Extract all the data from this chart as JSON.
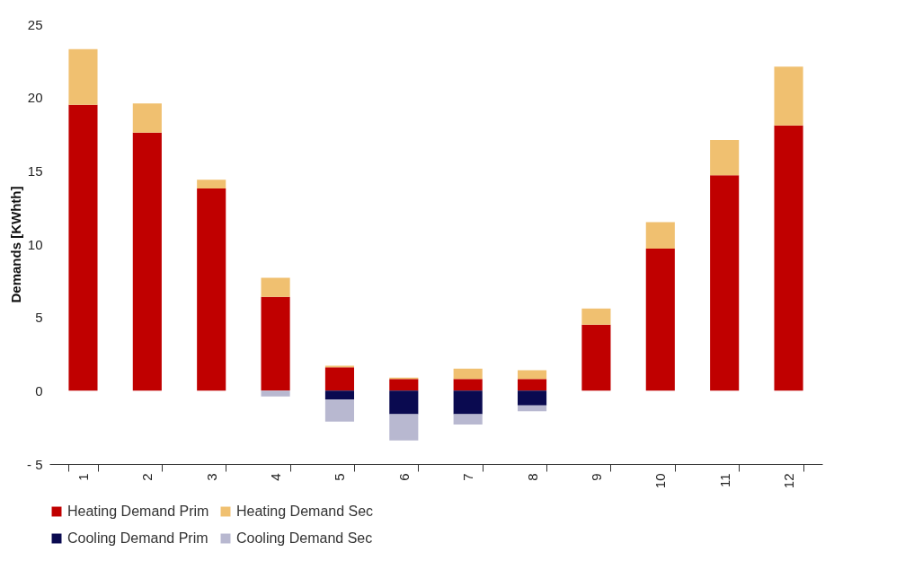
{
  "chart_data": {
    "type": "bar",
    "stacked": true,
    "ylabel": "Demands [KWhth]",
    "categories": [
      "1",
      "2",
      "3",
      "4",
      "5",
      "6",
      "7",
      "8",
      "9",
      "10",
      "11",
      "12"
    ],
    "series": [
      {
        "name": "Heating Demand Prim",
        "color": "#c00000",
        "values": [
          19.5,
          17.6,
          13.8,
          6.4,
          1.6,
          0.8,
          0.8,
          0.8,
          4.5,
          9.7,
          14.7,
          18.1
        ]
      },
      {
        "name": "Heating Demand Sec",
        "color": "#f0c070",
        "values": [
          3.8,
          2.0,
          0.6,
          1.3,
          0.1,
          0.1,
          0.7,
          0.6,
          1.1,
          1.8,
          2.4,
          4.0
        ]
      },
      {
        "name": "Cooling Demand Prim",
        "color": "#0a0a50",
        "values": [
          0,
          0,
          0,
          0,
          -0.6,
          -1.6,
          -1.6,
          -1.0,
          0,
          0,
          0,
          0
        ]
      },
      {
        "name": "Cooling Demand Sec",
        "color": "#b8b8d0",
        "values": [
          0,
          0,
          0,
          -0.4,
          -1.5,
          -1.8,
          -0.7,
          -0.4,
          0,
          0,
          0,
          0
        ]
      }
    ],
    "ylim": [
      -5,
      25
    ],
    "yticks": [
      {
        "value": -5,
        "label": "- 5"
      },
      0,
      5,
      10,
      15,
      20,
      25
    ],
    "grid": false,
    "legend": "bottom"
  }
}
